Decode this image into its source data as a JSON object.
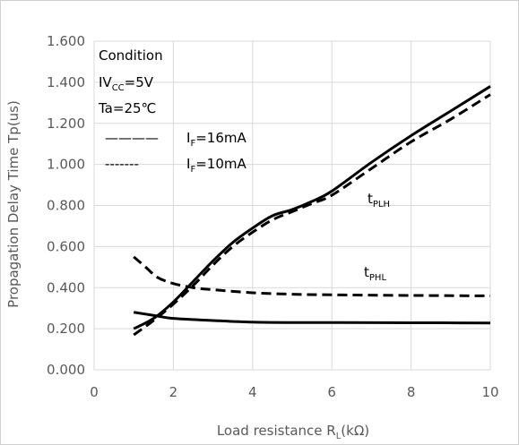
{
  "chart_data": {
    "type": "line",
    "xlabel": {
      "main": "Load resistance R",
      "sub": "L",
      "tail": "(kΩ)"
    },
    "ylabel": "Propagation Delay Time Tp(us)",
    "xlim": [
      0,
      10
    ],
    "ylim": [
      0,
      1.6
    ],
    "xticks": [
      "0",
      "2",
      "4",
      "6",
      "8",
      "10"
    ],
    "yticks": [
      "0.000",
      "0.200",
      "0.400",
      "0.600",
      "0.800",
      "1.000",
      "1.200",
      "1.400",
      "1.600"
    ],
    "grid": true,
    "condition": {
      "title": "Condition",
      "vcc_pre": "IV",
      "vcc_sub": "CC",
      "vcc_post": "=5V",
      "ta": "Ta=25℃"
    },
    "legend": [
      {
        "style": "solid",
        "line_text": "————",
        "pre": "I",
        "sub": "F",
        "post": "=16mA"
      },
      {
        "style": "dashed",
        "line_text": "-------",
        "pre": "I",
        "sub": "F",
        "post": "=10mA"
      }
    ],
    "labels": {
      "tplh": {
        "main": "t",
        "sub": "PLH"
      },
      "tphl": {
        "main": "t",
        "sub": "PHL"
      }
    },
    "series": [
      {
        "condition": "IF=16mA",
        "quantity": "tPLH",
        "style": "solid",
        "x": [
          1,
          1.5,
          2,
          2.5,
          3,
          3.5,
          4,
          4.5,
          5,
          5.5,
          6,
          7,
          8,
          9,
          10
        ],
        "y": [
          0.2,
          0.25,
          0.33,
          0.43,
          0.53,
          0.62,
          0.69,
          0.75,
          0.78,
          0.82,
          0.87,
          1.01,
          1.14,
          1.26,
          1.38
        ]
      },
      {
        "condition": "IF=10mA",
        "quantity": "tPLH",
        "style": "dashed",
        "x": [
          1,
          1.5,
          2,
          2.5,
          3,
          3.5,
          4,
          4.5,
          5,
          5.5,
          6,
          7,
          8,
          9,
          10
        ],
        "y": [
          0.17,
          0.24,
          0.32,
          0.41,
          0.51,
          0.6,
          0.67,
          0.73,
          0.77,
          0.81,
          0.85,
          0.98,
          1.11,
          1.22,
          1.34
        ]
      },
      {
        "condition": "IF=16mA",
        "quantity": "tPHL",
        "style": "solid",
        "x": [
          1,
          1.5,
          2,
          3,
          4,
          5,
          6,
          8,
          10
        ],
        "y": [
          0.28,
          0.265,
          0.25,
          0.24,
          0.232,
          0.23,
          0.23,
          0.229,
          0.228
        ]
      },
      {
        "condition": "IF=10mA",
        "quantity": "tPHL",
        "style": "dashed",
        "x": [
          1,
          1.3,
          1.6,
          2,
          2.5,
          3,
          4,
          5,
          6,
          8,
          10
        ],
        "y": [
          0.55,
          0.5,
          0.45,
          0.42,
          0.4,
          0.39,
          0.375,
          0.368,
          0.365,
          0.362,
          0.36
        ]
      }
    ]
  }
}
